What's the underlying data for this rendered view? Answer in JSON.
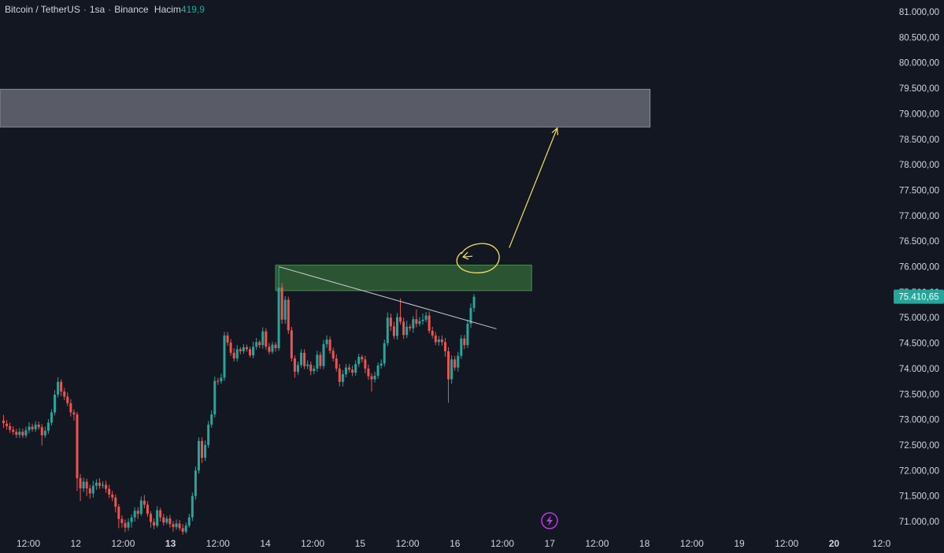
{
  "header": {
    "symbol": "Bitcoin / TetherUS",
    "interval": "1sa",
    "exchange": "Binance",
    "volume_label": "Hacim",
    "volume_value": "419,9"
  },
  "colors": {
    "background": "#131722",
    "up": "#26a69a",
    "down": "#ef5350",
    "axis_text": "#d1d4dc",
    "resistance_zone": "#5d606b",
    "support_zone": "#2f5b34",
    "trendline": "#c8cad0",
    "annotation": "#f4e15a",
    "price_label_bg": "#26a69a",
    "event_icon": "#c738ec"
  },
  "chart_data": {
    "type": "candlestick",
    "symbol": "Bitcoin / TetherUS",
    "interval": "1sa",
    "exchange": "Binance",
    "ylim": [
      70700,
      81200
    ],
    "y_ticks": [
      "81.000,00",
      "80.500,00",
      "80.000,00",
      "79.500,00",
      "79.000,00",
      "78.500,00",
      "78.000,00",
      "77.500,00",
      "77.000,00",
      "76.500,00",
      "76.000,00",
      "75.500,00",
      "75.000,00",
      "74.500,00",
      "74.000,00",
      "73.500,00",
      "73.000,00",
      "72.500,00",
      "72.000,00",
      "71.500,00",
      "71.000,00"
    ],
    "y_tick_values": [
      81000,
      80500,
      80000,
      79500,
      79000,
      78500,
      78000,
      77500,
      77000,
      76500,
      76000,
      75500,
      75000,
      74500,
      74000,
      73500,
      73000,
      72500,
      72000,
      71500,
      71000
    ],
    "x_ticks": [
      "12:00",
      "12",
      "12:00",
      "13",
      "12:00",
      "14",
      "12:00",
      "15",
      "12:00",
      "16",
      "12:00",
      "17",
      "12:00",
      "18",
      "12:00",
      "19",
      "12:00",
      "20",
      "12:0"
    ],
    "x_tick_bold": [
      false,
      false,
      false,
      true,
      false,
      false,
      false,
      false,
      false,
      false,
      false,
      false,
      false,
      false,
      false,
      false,
      false,
      true,
      false
    ],
    "last_price": "75.410,65",
    "last_price_value": 75410.65,
    "candles": [
      [
        72980,
        72930,
        73090,
        72840
      ],
      [
        72920,
        72870,
        72990,
        72800
      ],
      [
        72870,
        72800,
        72940,
        72740
      ],
      [
        72800,
        72760,
        72870,
        72700
      ],
      [
        72760,
        72700,
        72820,
        72640
      ],
      [
        72700,
        72760,
        72830,
        72640
      ],
      [
        72760,
        72690,
        72820,
        72640
      ],
      [
        72690,
        72790,
        72860,
        72640
      ],
      [
        72790,
        72860,
        72950,
        72730
      ],
      [
        72860,
        72810,
        72920,
        72760
      ],
      [
        72810,
        72900,
        72970,
        72760
      ],
      [
        72900,
        72850,
        72960,
        72800
      ],
      [
        72850,
        72690,
        72910,
        72490
      ],
      [
        72690,
        72780,
        72860,
        72640
      ],
      [
        72780,
        72940,
        73010,
        72720
      ],
      [
        72940,
        73140,
        73200,
        72880
      ],
      [
        73140,
        73490,
        73580,
        73080
      ],
      [
        73490,
        73740,
        73830,
        73430
      ],
      [
        73740,
        73550,
        73790,
        73460
      ],
      [
        73550,
        73450,
        73620,
        73380
      ],
      [
        73450,
        73320,
        73530,
        73260
      ],
      [
        73320,
        73140,
        73400,
        73060
      ],
      [
        73140,
        73100,
        73200,
        72980
      ],
      [
        73100,
        71850,
        73150,
        71600
      ],
      [
        71850,
        71650,
        71930,
        71400
      ],
      [
        71650,
        71780,
        71860,
        71580
      ],
      [
        71780,
        71650,
        71840,
        71500
      ],
      [
        71650,
        71550,
        71720,
        71450
      ],
      [
        71550,
        71700,
        71800,
        71470
      ],
      [
        71700,
        71760,
        71830,
        71620
      ],
      [
        71760,
        71700,
        71850,
        71640
      ],
      [
        71700,
        71720,
        71790,
        71650
      ],
      [
        71720,
        71640,
        71800,
        71560
      ],
      [
        71640,
        71530,
        71720,
        71460
      ],
      [
        71530,
        71470,
        71600,
        71400
      ],
      [
        71470,
        71290,
        71530,
        71180
      ],
      [
        71290,
        71050,
        71340,
        70870
      ],
      [
        71050,
        70970,
        71120,
        70880
      ],
      [
        70970,
        70880,
        71040,
        70790
      ],
      [
        70880,
        70990,
        71060,
        70820
      ],
      [
        70990,
        71080,
        71140,
        70880
      ],
      [
        71080,
        71210,
        71280,
        71000
      ],
      [
        71210,
        71150,
        71280,
        71050
      ],
      [
        71150,
        71410,
        71490,
        71110
      ],
      [
        71410,
        71330,
        71520,
        71260
      ],
      [
        71330,
        71150,
        71400,
        71090
      ],
      [
        71150,
        70990,
        71200,
        70880
      ],
      [
        70990,
        70920,
        71060,
        70850
      ],
      [
        70920,
        71220,
        71300,
        70880
      ],
      [
        71220,
        71080,
        71270,
        71000
      ],
      [
        71080,
        70980,
        71150,
        70920
      ],
      [
        70980,
        71060,
        71110,
        70940
      ],
      [
        71060,
        70950,
        71130,
        70880
      ],
      [
        70950,
        70890,
        71010,
        70800
      ],
      [
        70890,
        70960,
        71040,
        70840
      ],
      [
        70960,
        70870,
        71030,
        70820
      ],
      [
        70870,
        70800,
        70950,
        70740
      ],
      [
        70800,
        70920,
        70980,
        70760
      ],
      [
        70920,
        71080,
        71150,
        70880
      ],
      [
        71080,
        71500,
        71570,
        71010
      ],
      [
        71500,
        72000,
        72080,
        71430
      ],
      [
        72000,
        72580,
        72650,
        71940
      ],
      [
        72580,
        72250,
        72650,
        72150
      ],
      [
        72250,
        72500,
        72590,
        72190
      ],
      [
        72500,
        72900,
        72970,
        72440
      ],
      [
        72900,
        73100,
        73180,
        72840
      ],
      [
        73100,
        73760,
        73840,
        73040
      ],
      [
        73760,
        73750,
        73820,
        73680
      ],
      [
        73750,
        73820,
        73900,
        73700
      ],
      [
        73820,
        74650,
        74720,
        73760
      ],
      [
        74650,
        74510,
        74720,
        74450
      ],
      [
        74510,
        74310,
        74580,
        74250
      ],
      [
        74310,
        74200,
        74400,
        74140
      ],
      [
        74200,
        74380,
        74460,
        74140
      ],
      [
        74380,
        74340,
        74420,
        74280
      ],
      [
        74340,
        74420,
        74480,
        74290
      ],
      [
        74420,
        74380,
        74470,
        74330
      ],
      [
        74380,
        74260,
        74430,
        74220
      ],
      [
        74260,
        74430,
        74530,
        74200
      ],
      [
        74430,
        74520,
        74600,
        74370
      ],
      [
        74520,
        74460,
        74560,
        74400
      ],
      [
        74460,
        74730,
        74810,
        74390
      ],
      [
        74730,
        74430,
        74790,
        74370
      ],
      [
        74430,
        74330,
        74500,
        74280
      ],
      [
        74330,
        74470,
        74530,
        74290
      ],
      [
        74470,
        74400,
        74520,
        74330
      ],
      [
        74400,
        75590,
        76000,
        74350
      ],
      [
        75590,
        74960,
        75680,
        74880
      ],
      [
        74960,
        75350,
        75420,
        74880
      ],
      [
        75350,
        74750,
        75410,
        74680
      ],
      [
        74750,
        74200,
        74820,
        74140
      ],
      [
        74200,
        73940,
        74260,
        73820
      ],
      [
        73940,
        74070,
        74140,
        73880
      ],
      [
        74070,
        74310,
        74380,
        74020
      ],
      [
        74310,
        74050,
        74380,
        73990
      ],
      [
        74050,
        74080,
        74160,
        73990
      ],
      [
        74080,
        73950,
        74140,
        73870
      ],
      [
        73950,
        74000,
        74060,
        73890
      ],
      [
        74000,
        74270,
        74350,
        73940
      ],
      [
        74270,
        74050,
        74330,
        73990
      ],
      [
        74050,
        74480,
        74560,
        73990
      ],
      [
        74480,
        74570,
        74650,
        74410
      ],
      [
        74570,
        74350,
        74630,
        74290
      ],
      [
        74350,
        74200,
        74410,
        74140
      ],
      [
        74200,
        74000,
        74280,
        73940
      ],
      [
        74000,
        73740,
        74090,
        73650
      ],
      [
        73740,
        73890,
        73970,
        73650
      ],
      [
        73890,
        74020,
        74090,
        73830
      ],
      [
        74020,
        73980,
        74090,
        73920
      ],
      [
        73980,
        73920,
        74060,
        73850
      ],
      [
        73920,
        74090,
        74160,
        73860
      ],
      [
        74090,
        74230,
        74290,
        74030
      ],
      [
        74230,
        74180,
        74270,
        74120
      ],
      [
        74180,
        74000,
        74250,
        73910
      ],
      [
        74000,
        73850,
        74080,
        73780
      ],
      [
        73850,
        73790,
        73910,
        73550
      ],
      [
        73790,
        73860,
        73940,
        73730
      ],
      [
        73860,
        74060,
        74120,
        73800
      ],
      [
        74060,
        74100,
        74180,
        74000
      ],
      [
        74100,
        74500,
        74570,
        74040
      ],
      [
        74500,
        75000,
        75100,
        74440
      ],
      [
        75000,
        74830,
        75080,
        74740
      ],
      [
        74830,
        74640,
        74920,
        74580
      ],
      [
        74640,
        75010,
        75090,
        74570
      ],
      [
        75010,
        74920,
        75380,
        74860
      ],
      [
        74920,
        74660,
        75000,
        74580
      ],
      [
        74660,
        74820,
        74940,
        74600
      ],
      [
        74820,
        74790,
        74870,
        74730
      ],
      [
        74790,
        74970,
        75030,
        74700
      ],
      [
        74970,
        74880,
        75160,
        74810
      ],
      [
        74880,
        74930,
        75010,
        74830
      ],
      [
        74930,
        74960,
        75080,
        74860
      ],
      [
        74960,
        75040,
        75110,
        74910
      ],
      [
        75040,
        74740,
        75120,
        74690
      ],
      [
        74740,
        74650,
        74820,
        74590
      ],
      [
        74650,
        74520,
        74720,
        74460
      ],
      [
        74520,
        74570,
        74640,
        74450
      ],
      [
        74570,
        74520,
        74650,
        74450
      ],
      [
        74520,
        74340,
        74600,
        74230
      ],
      [
        74340,
        73790,
        74420,
        73330
      ],
      [
        73790,
        74180,
        74260,
        73700
      ],
      [
        74180,
        74020,
        74250,
        73960
      ],
      [
        74020,
        74250,
        74330,
        73940
      ],
      [
        74250,
        74590,
        74660,
        74190
      ],
      [
        74590,
        74460,
        74660,
        74380
      ],
      [
        74460,
        74880,
        74960,
        74400
      ],
      [
        74880,
        75190,
        75280,
        74800
      ],
      [
        75190,
        75410.65,
        75460,
        75110
      ]
    ],
    "zones": [
      {
        "y_low": 78740,
        "y_high": 79480,
        "x_start_index": 0,
        "x_end_index": 202
      },
      {
        "y_low": 75530,
        "y_high": 76030,
        "x_start_index": 85,
        "x_end_index": 165
      }
    ],
    "trendline": {
      "x_start_index": 86,
      "y_start": 76000,
      "x_end_index": 154,
      "y_end": 74780
    },
    "arrow": {
      "x_start_index": 158,
      "y_start": 76370,
      "x_end_index": 173,
      "y_end": 78720
    },
    "marked_point": {
      "x_index": 148,
      "y": 76190
    }
  }
}
